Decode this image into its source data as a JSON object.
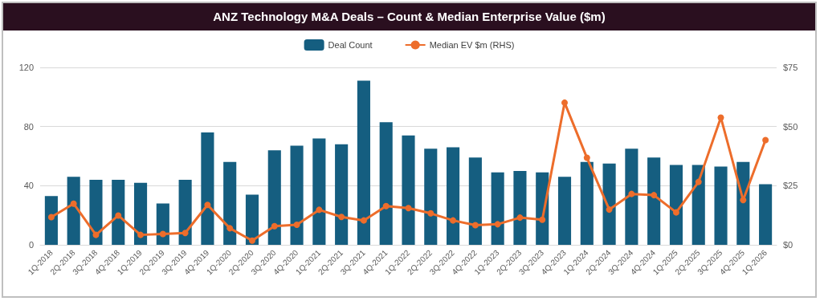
{
  "chart_data": {
    "type": "bar",
    "title": "ANZ Technology M&A Deals – Count & Median Enterprise Value ($m)",
    "categories": [
      "1Q-2018",
      "2Q-2018",
      "3Q-2018",
      "4Q-2018",
      "1Q-2019",
      "2Q-2019",
      "3Q-2019",
      "4Q-2019",
      "1Q-2020",
      "2Q-2020",
      "3Q-2020",
      "4Q-2020",
      "1Q-2021",
      "2Q-2021",
      "3Q-2021",
      "4Q-2021",
      "1Q-2022",
      "2Q-2022",
      "3Q-2022",
      "4Q-2022",
      "1Q-2023",
      "2Q-2023",
      "3Q-2023",
      "4Q-2023",
      "1Q-2024",
      "2Q-2024",
      "3Q-2024",
      "4Q-2024",
      "1Q-2025",
      "2Q-2025",
      "3Q-2025",
      "4Q-2025",
      "1Q-2026"
    ],
    "series": [
      {
        "name": "Deal Count",
        "color": "#155e80",
        "values": [
          33,
          46,
          44,
          44,
          42,
          28,
          44,
          76,
          56,
          34,
          64,
          67,
          72,
          68,
          111,
          83,
          74,
          65,
          66,
          59,
          49,
          50,
          49,
          46,
          56,
          55,
          65,
          59,
          54,
          54,
          53,
          56,
          41
        ]
      },
      {
        "name": "Median EV $m (RHS)",
        "type": "line",
        "axis": "y2",
        "color": "#ed6d2b",
        "marker": "circle",
        "values": [
          11.7,
          17.4,
          4.2,
          12.4,
          4.2,
          4.6,
          5.0,
          16.9,
          7.0,
          1.8,
          7.9,
          8.5,
          14.8,
          11.8,
          10.3,
          16.4,
          15.5,
          13.3,
          10.3,
          8.3,
          8.7,
          11.5,
          10.6,
          60.1,
          36.8,
          14.9,
          21.5,
          21.0,
          13.7,
          26.6,
          53.8,
          18.9,
          44.3
        ]
      }
    ],
    "ylim": [
      0,
      120
    ],
    "yticks": [
      0,
      40,
      80,
      120
    ],
    "y2lim": [
      0,
      75
    ],
    "y2ticks": [
      {
        "value": 0,
        "label": "$0"
      },
      {
        "value": 25,
        "label": "$25"
      },
      {
        "value": 50,
        "label": "$50"
      },
      {
        "value": 75,
        "label": "$75"
      }
    ],
    "grid": "y",
    "legend": "top"
  }
}
